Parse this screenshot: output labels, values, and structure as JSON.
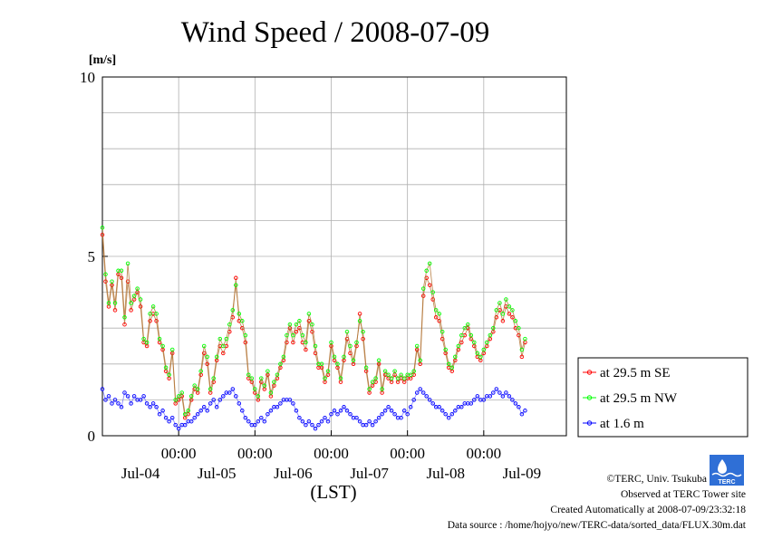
{
  "chart_data": {
    "type": "line",
    "title": "Wind Speed / 2008-07-09",
    "ylabel": "[m/s]",
    "xlabel": "(LST)",
    "ylim": [
      0,
      10
    ],
    "y_ticks": [
      0,
      5,
      10
    ],
    "x_range_hours": [
      0,
      146
    ],
    "grid": true,
    "legend_position": "right",
    "x_tick_time_label": "00:00",
    "x_ticks": [
      {
        "hour": 24,
        "time": "00:00"
      },
      {
        "hour": 48,
        "time": "00:00"
      },
      {
        "hour": 72,
        "time": "00:00"
      },
      {
        "hour": 96,
        "time": "00:00"
      },
      {
        "hour": 120,
        "time": "00:00"
      }
    ],
    "day_labels": [
      {
        "hour": 12,
        "label": "Jul-04"
      },
      {
        "hour": 36,
        "label": "Jul-05"
      },
      {
        "hour": 60,
        "label": "Jul-06"
      },
      {
        "hour": 84,
        "label": "Jul-07"
      },
      {
        "hour": 108,
        "label": "Jul-08"
      },
      {
        "hour": 132,
        "label": "Jul-09"
      }
    ],
    "sample_interval_hours": 1,
    "series": [
      {
        "name": "at 29.5 m SE",
        "color": "#ff0000",
        "values": [
          5.6,
          4.3,
          3.6,
          4.2,
          3.5,
          4.5,
          4.4,
          3.1,
          4.3,
          3.5,
          3.8,
          4.0,
          3.6,
          2.6,
          2.5,
          3.2,
          3.4,
          3.2,
          2.6,
          2.4,
          1.8,
          1.6,
          2.3,
          0.9,
          1.0,
          1.1,
          0.5,
          0.6,
          1.0,
          1.3,
          1.2,
          1.7,
          2.3,
          2.0,
          1.2,
          1.5,
          2.1,
          2.5,
          2.3,
          2.5,
          2.9,
          3.3,
          4.4,
          3.2,
          3.0,
          2.6,
          1.6,
          1.5,
          1.2,
          1.0,
          1.5,
          1.3,
          1.7,
          1.1,
          1.4,
          1.6,
          1.9,
          2.1,
          2.6,
          3.0,
          2.6,
          2.9,
          3.0,
          2.6,
          2.4,
          3.2,
          2.9,
          2.3,
          1.9,
          1.9,
          1.5,
          1.7,
          2.5,
          2.1,
          1.9,
          1.5,
          2.1,
          2.7,
          2.3,
          2.0,
          2.5,
          3.4,
          2.7,
          1.8,
          1.2,
          1.4,
          1.5,
          2.0,
          1.2,
          1.7,
          1.6,
          1.5,
          1.7,
          1.5,
          1.6,
          1.5,
          1.6,
          1.6,
          1.7,
          2.4,
          2.0,
          3.9,
          4.4,
          4.2,
          3.8,
          3.3,
          3.2,
          2.7,
          2.3,
          1.9,
          1.8,
          2.1,
          2.4,
          2.6,
          2.8,
          3.0,
          2.7,
          2.5,
          2.2,
          2.1,
          2.3,
          2.5,
          2.7,
          2.9,
          3.3,
          3.5,
          3.2,
          3.6,
          3.4,
          3.3,
          3.0,
          2.8,
          2.2,
          2.6
        ]
      },
      {
        "name": "at 29.5 m NW",
        "color": "#00ff00",
        "values": [
          5.8,
          4.5,
          3.7,
          4.3,
          3.7,
          4.6,
          4.6,
          3.3,
          4.8,
          3.7,
          3.9,
          4.1,
          3.8,
          2.7,
          2.6,
          3.4,
          3.6,
          3.4,
          2.7,
          2.5,
          1.9,
          1.7,
          2.4,
          1.0,
          1.1,
          1.2,
          0.6,
          0.7,
          1.1,
          1.4,
          1.3,
          1.8,
          2.5,
          2.2,
          1.3,
          1.6,
          2.2,
          2.7,
          2.5,
          2.7,
          3.1,
          3.5,
          4.2,
          3.4,
          3.2,
          2.8,
          1.7,
          1.6,
          1.3,
          1.1,
          1.6,
          1.4,
          1.8,
          1.2,
          1.5,
          1.7,
          2.0,
          2.2,
          2.8,
          3.1,
          2.8,
          3.1,
          3.2,
          2.8,
          2.6,
          3.4,
          3.1,
          2.5,
          2.0,
          2.0,
          1.6,
          1.8,
          2.6,
          2.2,
          2.0,
          1.6,
          2.2,
          2.9,
          2.5,
          2.1,
          2.6,
          3.2,
          2.9,
          1.9,
          1.3,
          1.5,
          1.6,
          2.1,
          1.3,
          1.8,
          1.7,
          1.6,
          1.8,
          1.6,
          1.7,
          1.6,
          1.7,
          1.7,
          1.8,
          2.5,
          2.1,
          4.1,
          4.6,
          4.8,
          4.0,
          3.5,
          3.4,
          2.9,
          2.4,
          2.0,
          1.9,
          2.2,
          2.5,
          2.8,
          3.0,
          3.1,
          2.8,
          2.6,
          2.3,
          2.2,
          2.4,
          2.6,
          2.8,
          3.0,
          3.5,
          3.7,
          3.4,
          3.8,
          3.6,
          3.5,
          3.2,
          3.0,
          2.4,
          2.7
        ]
      },
      {
        "name": "at 1.6 m",
        "color": "#0000ff",
        "values": [
          1.3,
          1.0,
          1.1,
          0.9,
          1.0,
          0.9,
          0.8,
          1.2,
          1.1,
          0.9,
          1.1,
          1.0,
          1.0,
          1.1,
          0.9,
          0.8,
          0.9,
          0.8,
          0.6,
          0.7,
          0.5,
          0.4,
          0.5,
          0.3,
          0.2,
          0.3,
          0.3,
          0.4,
          0.4,
          0.5,
          0.6,
          0.7,
          0.8,
          0.7,
          0.9,
          1.0,
          0.8,
          1.0,
          1.1,
          1.2,
          1.2,
          1.3,
          1.1,
          0.9,
          0.7,
          0.5,
          0.4,
          0.3,
          0.3,
          0.4,
          0.5,
          0.4,
          0.6,
          0.7,
          0.8,
          0.8,
          0.9,
          1.0,
          1.0,
          1.0,
          0.9,
          0.7,
          0.5,
          0.4,
          0.3,
          0.4,
          0.3,
          0.2,
          0.3,
          0.4,
          0.5,
          0.4,
          0.6,
          0.7,
          0.6,
          0.7,
          0.8,
          0.7,
          0.6,
          0.5,
          0.5,
          0.4,
          0.3,
          0.3,
          0.4,
          0.3,
          0.4,
          0.5,
          0.6,
          0.7,
          0.8,
          0.7,
          0.6,
          0.5,
          0.5,
          0.7,
          0.6,
          0.8,
          1.0,
          1.2,
          1.3,
          1.2,
          1.1,
          1.0,
          0.9,
          0.8,
          0.8,
          0.7,
          0.6,
          0.5,
          0.6,
          0.7,
          0.8,
          0.8,
          0.9,
          0.9,
          0.9,
          1.0,
          1.1,
          1.0,
          1.0,
          1.1,
          1.1,
          1.2,
          1.3,
          1.2,
          1.1,
          1.2,
          1.1,
          1.0,
          0.9,
          0.8,
          0.6,
          0.7
        ]
      }
    ]
  },
  "credits": {
    "copyright": "©TERC, Univ. Tsukuba",
    "observed": "Observed at TERC Tower site",
    "created": "Created Automatically at 2008-07-09/23:32:18",
    "source": "Data source : /home/hojyo/new/TERC-data/sorted_data/FLUX.30m.dat",
    "logo_text": "TERC"
  }
}
